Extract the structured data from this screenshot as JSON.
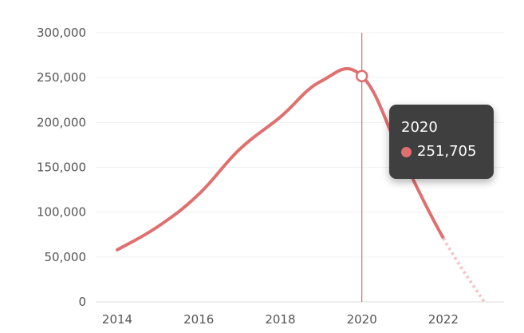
{
  "chart_data": {
    "type": "line",
    "x": [
      2014,
      2015,
      2016,
      2017,
      2018,
      2019,
      2020,
      2021,
      2022,
      2023
    ],
    "series": [
      {
        "values": [
          58000,
          84000,
          120000,
          170000,
          206000,
          246000,
          251705,
          160000,
          71000,
          0
        ],
        "color": "#e07070",
        "projected_from": 2022,
        "projected_color": "#f2c4c8"
      }
    ],
    "xticks": [
      "2014",
      "2016",
      "2018",
      "2020",
      "2022"
    ],
    "yticks": [
      "0",
      "50,000",
      "100,000",
      "150,000",
      "200,000",
      "250,000",
      "300,000"
    ],
    "ylim": [
      0,
      300000
    ],
    "xlim": [
      2014,
      2023
    ],
    "grid": true,
    "crosshair_x": 2020,
    "tooltip": {
      "title": "2020",
      "value": "251,705"
    }
  }
}
